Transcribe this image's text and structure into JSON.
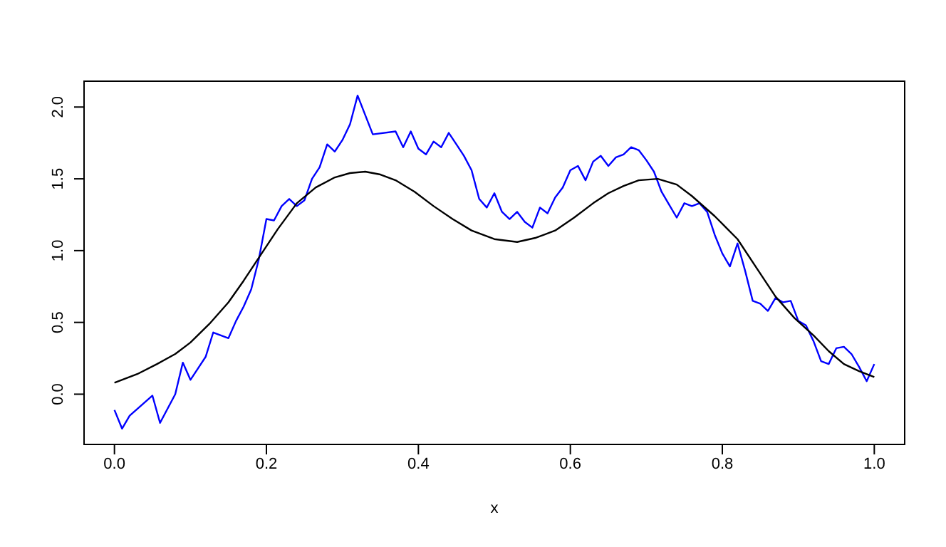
{
  "chart_data": {
    "type": "line",
    "xlabel": "x",
    "xlim": [
      -0.04,
      1.04
    ],
    "ylim": [
      -0.35,
      2.18
    ],
    "xticks": [
      {
        "value": 0,
        "label": "0.0"
      },
      0.2,
      0.4,
      0.6,
      0.8,
      {
        "value": 1,
        "label": "1.0"
      }
    ],
    "yticks": [
      {
        "value": 0,
        "label": "0.0"
      },
      0.5,
      {
        "value": 1,
        "label": "1.0"
      },
      1.5,
      {
        "value": 2,
        "label": "2.0"
      }
    ],
    "grid": false,
    "marker": "none",
    "line_style": "solid",
    "series": [
      {
        "color": "#0000ff",
        "x": [
          0,
          0.01,
          0.02,
          0.05,
          0.06,
          0.08,
          0.09,
          0.1,
          0.12,
          0.13,
          0.15,
          0.16,
          0.17,
          0.18,
          0.19,
          0.2,
          0.21,
          0.22,
          0.23,
          0.24,
          0.25,
          0.26,
          0.27,
          0.28,
          0.29,
          0.3,
          0.31,
          0.32,
          0.34,
          0.37,
          0.38,
          0.39,
          0.4,
          0.41,
          0.42,
          0.43,
          0.44,
          0.45,
          0.46,
          0.47,
          0.48,
          0.49,
          0.5,
          0.51,
          0.52,
          0.53,
          0.54,
          0.55,
          0.56,
          0.57,
          0.58,
          0.59,
          0.6,
          0.61,
          0.62,
          0.63,
          0.64,
          0.65,
          0.66,
          0.67,
          0.68,
          0.69,
          0.7,
          0.71,
          0.72,
          0.73,
          0.74,
          0.75,
          0.76,
          0.77,
          0.78,
          0.79,
          0.8,
          0.81,
          0.82,
          0.83,
          0.84,
          0.85,
          0.86,
          0.87,
          0.88,
          0.89,
          0.9,
          0.91,
          0.92,
          0.93,
          0.94,
          0.95,
          0.96,
          0.97,
          0.98,
          0.99,
          1
        ],
        "values": [
          -0.11,
          -0.24,
          -0.15,
          -0.01,
          -0.2,
          0,
          0.22,
          0.1,
          0.26,
          0.43,
          0.39,
          0.51,
          0.61,
          0.73,
          0.94,
          1.22,
          1.21,
          1.31,
          1.36,
          1.31,
          1.35,
          1.5,
          1.58,
          1.74,
          1.69,
          1.77,
          1.88,
          2.08,
          1.81,
          1.83,
          1.72,
          1.83,
          1.71,
          1.67,
          1.76,
          1.72,
          1.82,
          1.74,
          1.66,
          1.56,
          1.36,
          1.3,
          1.4,
          1.27,
          1.22,
          1.27,
          1.2,
          1.16,
          1.3,
          1.26,
          1.37,
          1.44,
          1.56,
          1.59,
          1.49,
          1.62,
          1.66,
          1.59,
          1.65,
          1.67,
          1.72,
          1.7,
          1.63,
          1.55,
          1.41,
          1.32,
          1.23,
          1.33,
          1.31,
          1.33,
          1.27,
          1.11,
          0.98,
          0.89,
          1.05,
          0.86,
          0.65,
          0.63,
          0.58,
          0.67,
          0.64,
          0.65,
          0.51,
          0.48,
          0.37,
          0.23,
          0.21,
          0.32,
          0.33,
          0.28,
          0.19,
          0.09,
          0.21
        ]
      },
      {
        "color": "#000000",
        "x": [
          0,
          0.03,
          0.056,
          0.08,
          0.1,
          0.125,
          0.15,
          0.17,
          0.19,
          0.215,
          0.24,
          0.265,
          0.29,
          0.31,
          0.33,
          0.35,
          0.37,
          0.395,
          0.42,
          0.445,
          0.47,
          0.5,
          0.53,
          0.555,
          0.58,
          0.605,
          0.63,
          0.65,
          0.67,
          0.69,
          0.715,
          0.74,
          0.76,
          0.79,
          0.82,
          0.845,
          0.87,
          0.895,
          0.92,
          0.94,
          0.96,
          0.98,
          1
        ],
        "values": [
          0.08,
          0.14,
          0.21,
          0.28,
          0.36,
          0.49,
          0.64,
          0.79,
          0.95,
          1.15,
          1.33,
          1.44,
          1.51,
          1.54,
          1.55,
          1.53,
          1.49,
          1.41,
          1.31,
          1.22,
          1.14,
          1.08,
          1.06,
          1.09,
          1.14,
          1.23,
          1.33,
          1.4,
          1.45,
          1.49,
          1.5,
          1.46,
          1.38,
          1.24,
          1.08,
          0.88,
          0.68,
          0.53,
          0.41,
          0.3,
          0.21,
          0.16,
          0.12
        ]
      }
    ]
  }
}
